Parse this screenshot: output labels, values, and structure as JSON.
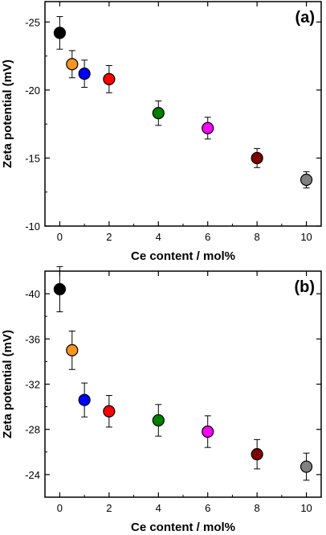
{
  "chart_data": [
    {
      "type": "scatter",
      "panel_label": "(a)",
      "xlabel": "Ce content / mol%",
      "ylabel": "Zeta potential (mV)",
      "xlim": [
        -0.6,
        10.6
      ],
      "ylim": [
        -26.5,
        -10
      ],
      "y_reversed": true,
      "xticks": [
        0,
        2,
        4,
        6,
        8,
        10
      ],
      "yticks": [
        -25,
        -20,
        -15,
        -10
      ],
      "grid": false,
      "points": [
        {
          "x": 0,
          "y": -24.2,
          "err": 1.2,
          "color": "#000000"
        },
        {
          "x": 0.5,
          "y": -21.9,
          "err": 1.0,
          "color": "#f7941d"
        },
        {
          "x": 1,
          "y": -21.2,
          "err": 1.0,
          "color": "#0000ff"
        },
        {
          "x": 2,
          "y": -20.8,
          "err": 1.0,
          "color": "#ff0000"
        },
        {
          "x": 4,
          "y": -18.3,
          "err": 0.9,
          "color": "#008000"
        },
        {
          "x": 6,
          "y": -17.2,
          "err": 0.8,
          "color": "#ff00ff"
        },
        {
          "x": 8,
          "y": -15.0,
          "err": 0.7,
          "color": "#800000"
        },
        {
          "x": 10,
          "y": -13.4,
          "err": 0.6,
          "color": "#808080"
        }
      ]
    },
    {
      "type": "scatter",
      "panel_label": "(b)",
      "xlabel": "Ce content / mol%",
      "ylabel": "Zeta potential (mV)",
      "xlim": [
        -0.6,
        10.6
      ],
      "ylim": [
        -42,
        -22
      ],
      "y_reversed": true,
      "xticks": [
        0,
        2,
        4,
        6,
        8,
        10
      ],
      "yticks": [
        -40,
        -36,
        -32,
        -28,
        -24
      ],
      "grid": false,
      "points": [
        {
          "x": 0,
          "y": -40.4,
          "err": 2.0,
          "color": "#000000"
        },
        {
          "x": 0.5,
          "y": -35.0,
          "err": 1.7,
          "color": "#f7941d"
        },
        {
          "x": 1,
          "y": -30.6,
          "err": 1.5,
          "color": "#0000ff"
        },
        {
          "x": 2,
          "y": -29.6,
          "err": 1.4,
          "color": "#ff0000"
        },
        {
          "x": 4,
          "y": -28.8,
          "err": 1.4,
          "color": "#008000"
        },
        {
          "x": 6,
          "y": -27.8,
          "err": 1.4,
          "color": "#ff00ff"
        },
        {
          "x": 8,
          "y": -25.8,
          "err": 1.3,
          "color": "#800000"
        },
        {
          "x": 10,
          "y": -24.7,
          "err": 1.2,
          "color": "#808080"
        }
      ]
    }
  ]
}
